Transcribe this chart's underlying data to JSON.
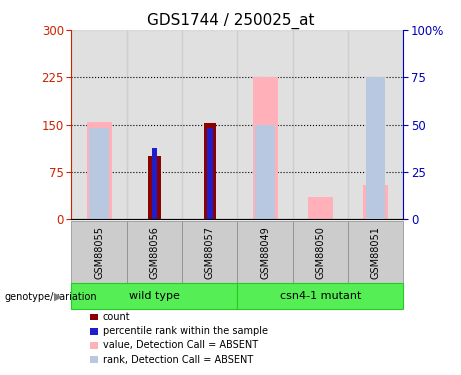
{
  "title": "GDS1744 / 250025_at",
  "samples": [
    "GSM88055",
    "GSM88056",
    "GSM88057",
    "GSM88049",
    "GSM88050",
    "GSM88051"
  ],
  "count_values": [
    null,
    100,
    152,
    null,
    null,
    null
  ],
  "rank_values_left": [
    null,
    113,
    145,
    null,
    null,
    null
  ],
  "value_absent": [
    155,
    null,
    null,
    225,
    35,
    55
  ],
  "rank_absent_left": [
    145,
    null,
    null,
    150,
    null,
    null
  ],
  "rank_absent_right_only": [
    null,
    null,
    null,
    null,
    null,
    75
  ],
  "ylim_left": [
    0,
    300
  ],
  "ylim_right": [
    0,
    100
  ],
  "yticks_left": [
    0,
    75,
    150,
    225,
    300
  ],
  "yticks_right": [
    0,
    25,
    50,
    75,
    100
  ],
  "colors": {
    "count": "#8B0000",
    "rank": "#1E1ECC",
    "value_absent": "#FFB0B8",
    "rank_absent": "#B8C8E0",
    "left_axis": "#CC2200",
    "right_axis": "#0000BB",
    "bar_bg": "#CCCCCC",
    "group_wt": "#55EE55",
    "group_mut": "#55EE55"
  },
  "group_defs": [
    {
      "label": "wild type",
      "start": 0,
      "end": 2
    },
    {
      "label": "csn4-1 mutant",
      "start": 3,
      "end": 5
    }
  ],
  "legend": [
    {
      "label": "count",
      "color": "#8B0000"
    },
    {
      "label": "percentile rank within the sample",
      "color": "#1E1ECC"
    },
    {
      "label": "value, Detection Call = ABSENT",
      "color": "#FFB0B8"
    },
    {
      "label": "rank, Detection Call = ABSENT",
      "color": "#B8C8E0"
    }
  ]
}
